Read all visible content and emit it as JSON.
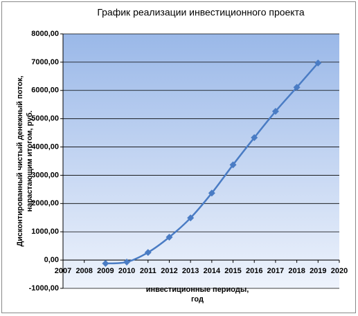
{
  "chart_data": {
    "type": "line",
    "title": "График реализации инвестиционного проекта",
    "y_label": [
      "Дисконтированный чистый денежный поток,",
      "нарастающим итогом, руб."
    ],
    "x_label": [
      "инвестиционные периоды,",
      "год"
    ],
    "x": [
      2009,
      2010,
      2011,
      2012,
      2013,
      2014,
      2015,
      2016,
      2017,
      2018,
      2019
    ],
    "values": [
      -120,
      -70,
      270,
      810,
      1490,
      2370,
      3370,
      4330,
      5260,
      6110,
      6970
    ],
    "color": "#4a7cc4",
    "xlim": [
      2007,
      2020
    ],
    "xticks": [
      2007,
      2008,
      2009,
      2010,
      2011,
      2012,
      2013,
      2014,
      2015,
      2016,
      2017,
      2018,
      2019,
      2020
    ],
    "ylim": [
      -1000,
      8000
    ],
    "yticks": [
      {
        "value": -1000,
        "label": "-1000,00"
      },
      {
        "value": 0,
        "label": "0,00"
      },
      {
        "value": 1000,
        "label": "1000,00"
      },
      {
        "value": 2000,
        "label": "2000,00"
      },
      {
        "value": 3000,
        "label": "3000,00"
      },
      {
        "value": 4000,
        "label": "4000,00"
      },
      {
        "value": 5000,
        "label": "5000,00"
      },
      {
        "value": 6000,
        "label": "6000,00"
      },
      {
        "value": 7000,
        "label": "7000,00"
      },
      {
        "value": 8000,
        "label": "8000,00"
      }
    ],
    "grid": true
  }
}
